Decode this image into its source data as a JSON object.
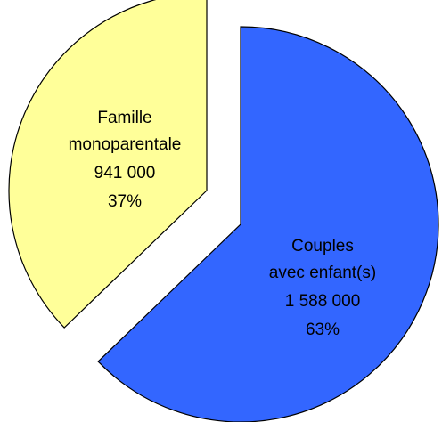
{
  "chart_data": {
    "type": "pie",
    "categories": [
      "Couples\navec enfant(s)",
      "Famille\nmonoparentale"
    ],
    "values": [
      1588000,
      941000
    ],
    "value_labels": [
      "1 588 000",
      "941 000"
    ],
    "percent_labels": [
      "63%",
      "37%"
    ],
    "colors": [
      "#3366ff",
      "#ffff99"
    ]
  }
}
